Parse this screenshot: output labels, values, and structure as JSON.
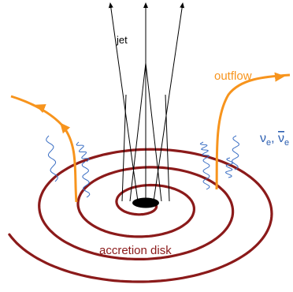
{
  "labels": {
    "jet": "jet",
    "outflow": "outflow",
    "accretion_disk": "accretion disk",
    "neutrinos": {
      "nu": "ν",
      "nu_flavor": "e",
      "separator": ", ",
      "antinu": "ν",
      "antinu_flavor": "e"
    }
  }
}
